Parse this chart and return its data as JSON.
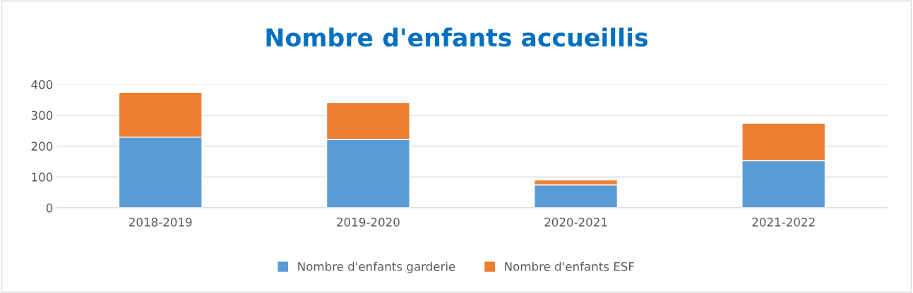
{
  "chart_data": {
    "type": "bar",
    "title": "Nombre d'enfants accueillis",
    "stacked": true,
    "categories": [
      "2018-2019",
      "2019-2020",
      "2020-2021",
      "2021-2022"
    ],
    "series": [
      {
        "name": "Nombre d'enfants garderie",
        "color": "#5b9bd5",
        "values": [
          229,
          222,
          74,
          153
        ]
      },
      {
        "name": "Nombre d'enfants ESF",
        "color": "#ed7d31",
        "values": [
          145,
          119,
          16,
          121
        ]
      }
    ],
    "ylim": [
      0,
      400
    ],
    "yticks": [
      0,
      100,
      200,
      300,
      400
    ],
    "grid": "y",
    "legend": "bottom"
  }
}
